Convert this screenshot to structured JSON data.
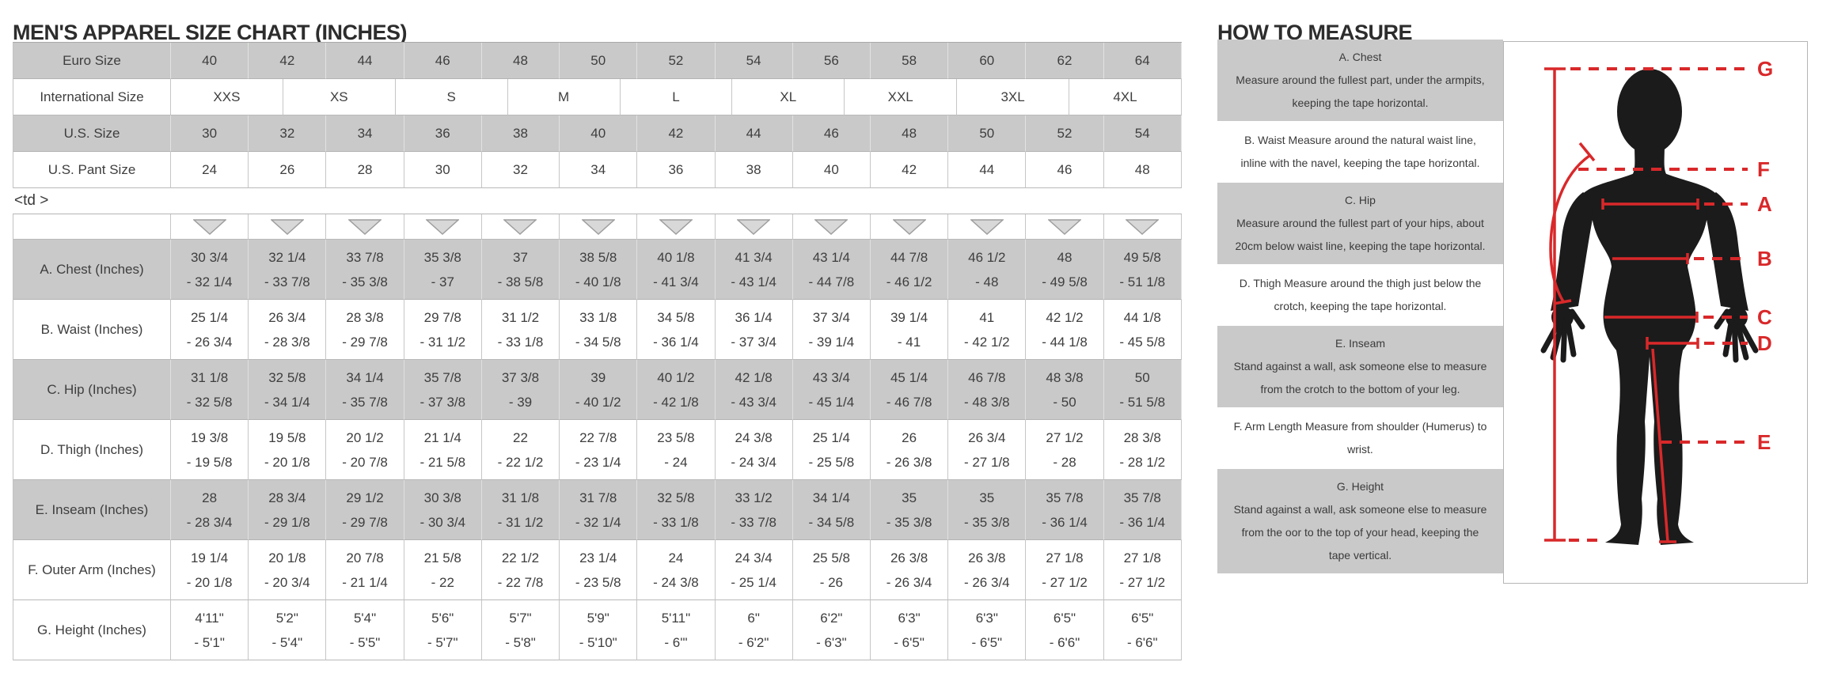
{
  "size_chart": {
    "title": "MEN'S APPAREL SIZE CHART (INCHES)",
    "stray_text": "<td >",
    "column_icon": "chevron-down-icon",
    "header_rows": [
      {
        "label": "Euro Size",
        "shaded": true,
        "values": [
          "40",
          "42",
          "44",
          "46",
          "48",
          "50",
          "52",
          "54",
          "56",
          "58",
          "60",
          "62",
          "64"
        ]
      },
      {
        "label": "International Size",
        "shaded": false,
        "values": [
          "XXS",
          "XS",
          "S",
          "M",
          "L",
          "XL",
          "XXL",
          "3XL",
          "4XL"
        ]
      },
      {
        "label": "U.S. Size",
        "shaded": true,
        "values": [
          "30",
          "32",
          "34",
          "36",
          "38",
          "40",
          "42",
          "44",
          "46",
          "48",
          "50",
          "52",
          "54"
        ]
      },
      {
        "label": "U.S. Pant Size",
        "shaded": false,
        "values": [
          "24",
          "26",
          "28",
          "30",
          "32",
          "34",
          "36",
          "38",
          "40",
          "42",
          "44",
          "46",
          "48"
        ]
      }
    ],
    "measurement_rows": [
      {
        "label": "A. Chest (Inches)",
        "shaded": true,
        "values": [
          [
            "30 3/4",
            "- 32 1/4"
          ],
          [
            "32 1/4",
            "- 33 7/8"
          ],
          [
            "33 7/8",
            "- 35 3/8"
          ],
          [
            "35 3/8",
            "- 37"
          ],
          [
            "37",
            "- 38 5/8"
          ],
          [
            "38 5/8",
            "- 40 1/8"
          ],
          [
            "40 1/8",
            "- 41 3/4"
          ],
          [
            "41 3/4",
            "- 43 1/4"
          ],
          [
            "43 1/4",
            "- 44 7/8"
          ],
          [
            "44 7/8",
            "- 46 1/2"
          ],
          [
            "46 1/2",
            "- 48"
          ],
          [
            "48",
            "- 49 5/8"
          ],
          [
            "49 5/8",
            "- 51 1/8"
          ]
        ]
      },
      {
        "label": "B. Waist (Inches)",
        "shaded": false,
        "values": [
          [
            "25 1/4",
            "- 26 3/4"
          ],
          [
            "26 3/4",
            "- 28 3/8"
          ],
          [
            "28 3/8",
            "- 29 7/8"
          ],
          [
            "29 7/8",
            "- 31 1/2"
          ],
          [
            "31 1/2",
            "- 33 1/8"
          ],
          [
            "33 1/8",
            "- 34 5/8"
          ],
          [
            "34 5/8",
            "- 36 1/4"
          ],
          [
            "36 1/4",
            "- 37 3/4"
          ],
          [
            "37 3/4",
            "- 39 1/4"
          ],
          [
            "39 1/4",
            "- 41"
          ],
          [
            "41",
            "- 42 1/2"
          ],
          [
            "42 1/2",
            "- 44 1/8"
          ],
          [
            "44 1/8",
            "- 45 5/8"
          ]
        ]
      },
      {
        "label": "C. Hip (Inches)",
        "shaded": true,
        "values": [
          [
            "31 1/8",
            "- 32 5/8"
          ],
          [
            "32 5/8",
            "- 34 1/4"
          ],
          [
            "34 1/4",
            "- 35 7/8"
          ],
          [
            "35 7/8",
            "- 37 3/8"
          ],
          [
            "37 3/8",
            "- 39"
          ],
          [
            "39",
            "- 40 1/2"
          ],
          [
            "40 1/2",
            "- 42 1/8"
          ],
          [
            "42 1/8",
            "- 43 3/4"
          ],
          [
            "43 3/4",
            "- 45 1/4"
          ],
          [
            "45 1/4",
            "- 46 7/8"
          ],
          [
            "46 7/8",
            "- 48 3/8"
          ],
          [
            "48 3/8",
            "- 50"
          ],
          [
            "50",
            "- 51 5/8"
          ]
        ]
      },
      {
        "label": "D. Thigh (Inches)",
        "shaded": false,
        "values": [
          [
            "19 3/8",
            "- 19 5/8"
          ],
          [
            "19 5/8",
            "- 20 1/8"
          ],
          [
            "20 1/2",
            "- 20 7/8"
          ],
          [
            "21 1/4",
            "- 21 5/8"
          ],
          [
            "22",
            "- 22 1/2"
          ],
          [
            "22 7/8",
            "- 23 1/4"
          ],
          [
            "23 5/8",
            "- 24"
          ],
          [
            "24 3/8",
            "- 24 3/4"
          ],
          [
            "25 1/4",
            "- 25 5/8"
          ],
          [
            "26",
            "- 26 3/8"
          ],
          [
            "26 3/4",
            "- 27 1/8"
          ],
          [
            "27 1/2",
            "- 28"
          ],
          [
            "28 3/8",
            "- 28 1/2"
          ]
        ]
      },
      {
        "label": "E. Inseam (Inches)",
        "shaded": true,
        "values": [
          [
            "28",
            "- 28 3/4"
          ],
          [
            "28 3/4",
            "- 29 1/8"
          ],
          [
            "29 1/2",
            "- 29 7/8"
          ],
          [
            "30 3/8",
            "- 30 3/4"
          ],
          [
            "31 1/8",
            "- 31 1/2"
          ],
          [
            "31 7/8",
            "- 32 1/4"
          ],
          [
            "32 5/8",
            "- 33 1/8"
          ],
          [
            "33 1/2",
            "- 33 7/8"
          ],
          [
            "34 1/4",
            "- 34 5/8"
          ],
          [
            "35",
            "- 35 3/8"
          ],
          [
            "35",
            "- 35 3/8"
          ],
          [
            "35 7/8",
            "- 36 1/4"
          ],
          [
            "35 7/8",
            "- 36 1/4"
          ]
        ]
      },
      {
        "label": "F. Outer Arm (Inches)",
        "shaded": false,
        "values": [
          [
            "19 1/4",
            "- 20 1/8"
          ],
          [
            "20 1/8",
            "- 20 3/4"
          ],
          [
            "20 7/8",
            "- 21 1/4"
          ],
          [
            "21 5/8",
            "- 22"
          ],
          [
            "22 1/2",
            "- 22 7/8"
          ],
          [
            "23 1/4",
            "- 23 5/8"
          ],
          [
            "24",
            "- 24 3/8"
          ],
          [
            "24 3/4",
            "- 25 1/4"
          ],
          [
            "25 5/8",
            "- 26"
          ],
          [
            "26 3/8",
            "- 26 3/4"
          ],
          [
            "26 3/8",
            "- 26 3/4"
          ],
          [
            "27 1/8",
            "- 27 1/2"
          ],
          [
            "27 1/8",
            "- 27 1/2"
          ]
        ]
      },
      {
        "label": "G. Height (Inches)",
        "shaded": false,
        "values": [
          [
            "4'11\"",
            "- 5'1\""
          ],
          [
            "5'2\"",
            "- 5'4\""
          ],
          [
            "5'4\"",
            "- 5'5\""
          ],
          [
            "5'6\"",
            "- 5'7\""
          ],
          [
            "5'7\"",
            "- 5'8\""
          ],
          [
            "5'9\"",
            "- 5'10\""
          ],
          [
            "5'11\"",
            "- 6'\""
          ],
          [
            "6\"",
            "- 6'2\""
          ],
          [
            "6'2\"",
            "- 6'3\""
          ],
          [
            "6'3\"",
            "- 6'5\""
          ],
          [
            "6'3\"",
            "- 6'5\""
          ],
          [
            "6'5\"",
            "- 6'6\""
          ],
          [
            "6'5\"",
            "- 6'6\""
          ]
        ]
      }
    ]
  },
  "how_to_measure": {
    "title": "HOW TO MEASURE",
    "items": [
      {
        "shaded": true,
        "lines": [
          "A. Chest",
          "Measure around the fullest part, under the armpits,",
          "keeping the tape horizontal."
        ]
      },
      {
        "shaded": false,
        "lines": [
          "B. Waist Measure around the natural waist line,",
          "inline with the navel, keeping the tape horizontal."
        ]
      },
      {
        "shaded": true,
        "lines": [
          "C. Hip",
          "Measure around the fullest part of your hips, about",
          "20cm below waist line, keeping the tape horizontal."
        ]
      },
      {
        "shaded": false,
        "lines": [
          "D. Thigh Measure around the thigh just below the",
          "crotch, keeping the tape horizontal."
        ]
      },
      {
        "shaded": true,
        "lines": [
          "E. Inseam",
          "Stand against a wall, ask someone else to measure",
          "from the crotch to the bottom of your leg."
        ]
      },
      {
        "shaded": false,
        "lines": [
          "F. Arm Length Measure from shoulder (Humerus) to",
          "wrist."
        ]
      },
      {
        "shaded": true,
        "lines": [
          "G. Height",
          "Stand against a wall, ask someone else to measure",
          "from the oor to the top of your head, keeping the",
          "tape vertical."
        ]
      }
    ],
    "diagram_labels": [
      "G",
      "F",
      "A",
      "B",
      "C",
      "D",
      "E"
    ]
  },
  "colors": {
    "accent_red": "#d9282a",
    "band_gray": "#c8c9c8",
    "silhouette_black": "#1b1b1b"
  }
}
